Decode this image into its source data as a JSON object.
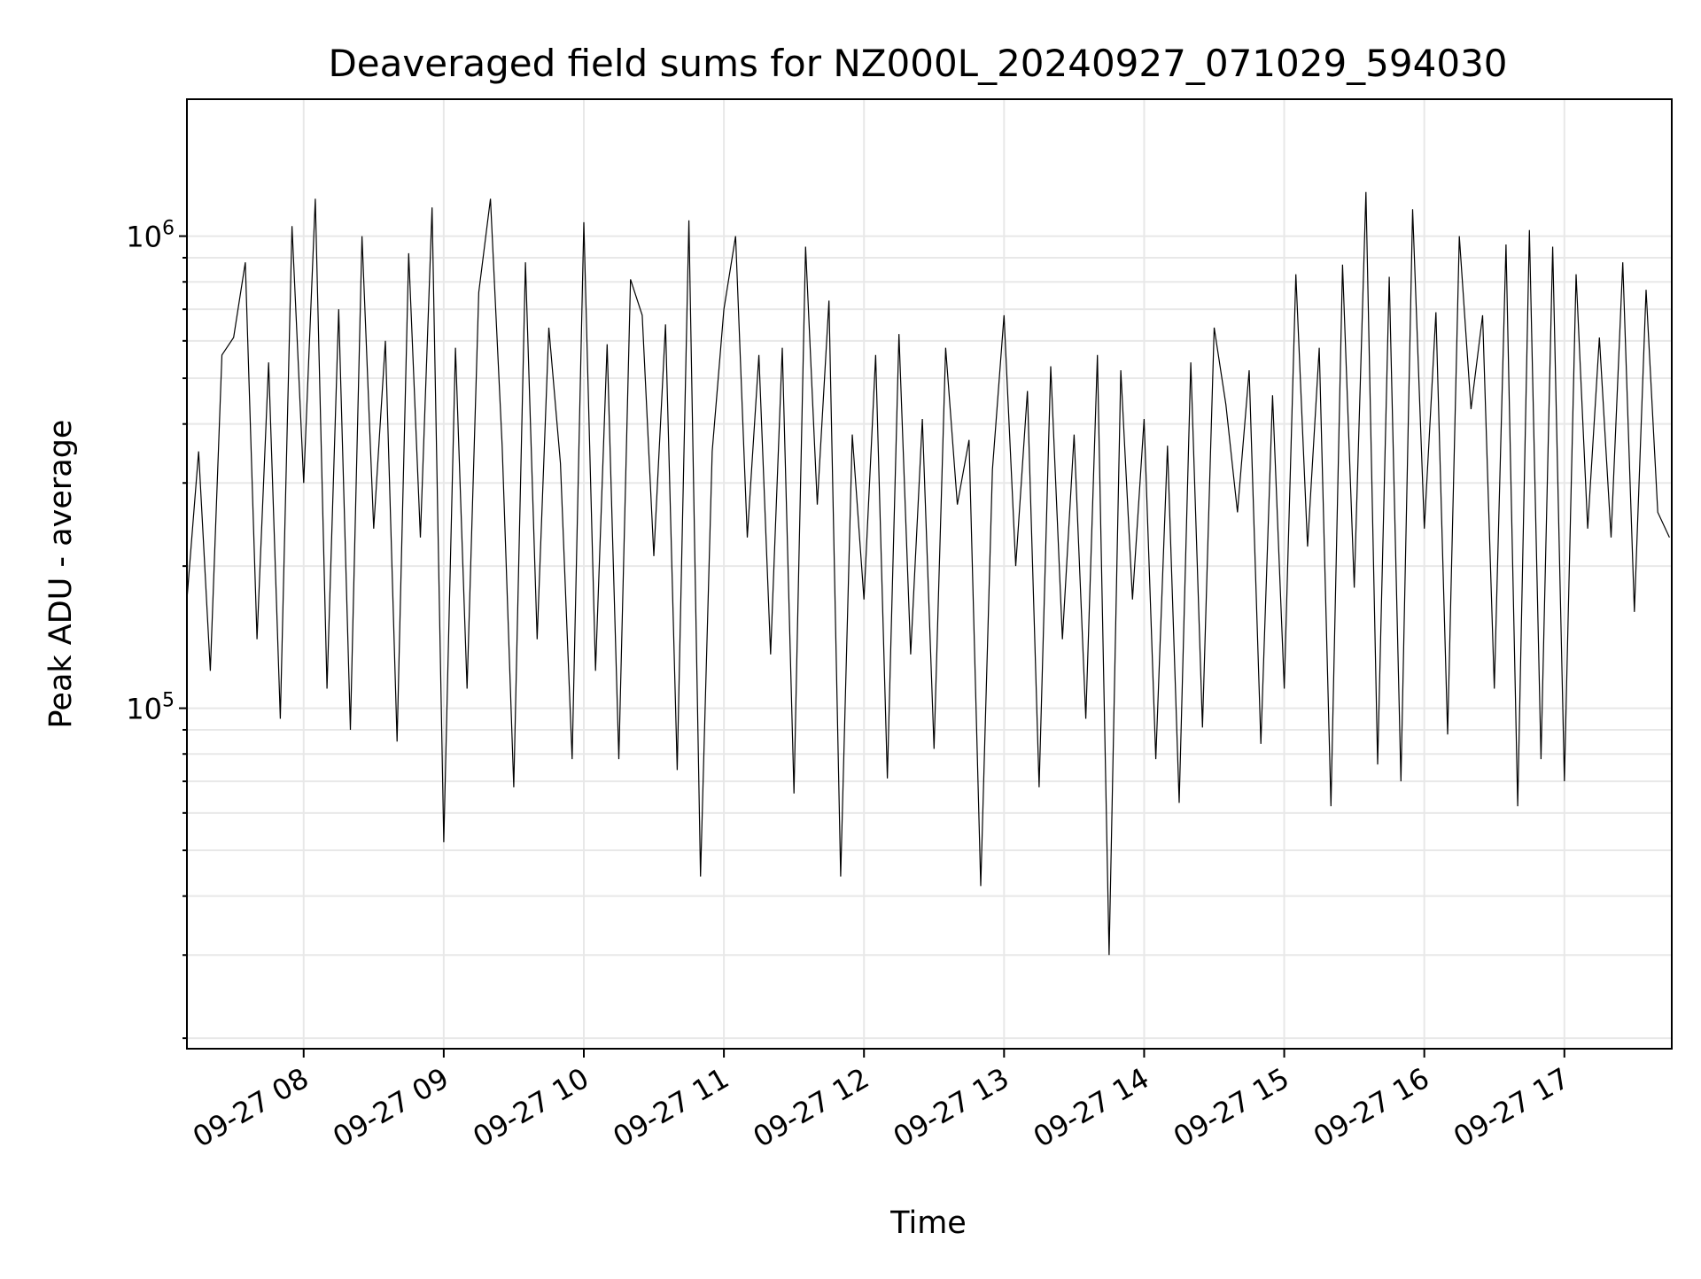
{
  "chart_data": {
    "type": "line",
    "title": "Deaveraged field sums for NZ000L_20240927_071029_594030",
    "xlabel": "Time",
    "ylabel": "Peak ADU - average",
    "yscale": "log",
    "ylim": [
      19000,
      1950000
    ],
    "xlim": [
      "2024-09-27 07:10",
      "2024-09-27 17:46"
    ],
    "grid": true,
    "line_color": "#000000",
    "grid_color": "#e8e8e8",
    "x_ticks": [
      {
        "value": "2024-09-27 08:00",
        "label": "09-27 08"
      },
      {
        "value": "2024-09-27 09:00",
        "label": "09-27 09"
      },
      {
        "value": "2024-09-27 10:00",
        "label": "09-27 10"
      },
      {
        "value": "2024-09-27 11:00",
        "label": "09-27 11"
      },
      {
        "value": "2024-09-27 12:00",
        "label": "09-27 12"
      },
      {
        "value": "2024-09-27 13:00",
        "label": "09-27 13"
      },
      {
        "value": "2024-09-27 14:00",
        "label": "09-27 14"
      },
      {
        "value": "2024-09-27 15:00",
        "label": "09-27 15"
      },
      {
        "value": "2024-09-27 16:00",
        "label": "09-27 16"
      },
      {
        "value": "2024-09-27 17:00",
        "label": "09-27 17"
      }
    ],
    "y_major_ticks": [
      {
        "value": 100000,
        "base": "10",
        "exp": "5"
      },
      {
        "value": 1000000,
        "base": "10",
        "exp": "6"
      }
    ],
    "series": [
      {
        "x": [
          "2024-09-27 07:10",
          "2024-09-27 07:15",
          "2024-09-27 07:20",
          "2024-09-27 07:25",
          "2024-09-27 07:30",
          "2024-09-27 07:35",
          "2024-09-27 07:40",
          "2024-09-27 07:45",
          "2024-09-27 07:50",
          "2024-09-27 07:55",
          "2024-09-27 08:00",
          "2024-09-27 08:05",
          "2024-09-27 08:10",
          "2024-09-27 08:15",
          "2024-09-27 08:20",
          "2024-09-27 08:25",
          "2024-09-27 08:30",
          "2024-09-27 08:35",
          "2024-09-27 08:40",
          "2024-09-27 08:45",
          "2024-09-27 08:50",
          "2024-09-27 08:55",
          "2024-09-27 09:00",
          "2024-09-27 09:05",
          "2024-09-27 09:10",
          "2024-09-27 09:15",
          "2024-09-27 09:20",
          "2024-09-27 09:25",
          "2024-09-27 09:30",
          "2024-09-27 09:35",
          "2024-09-27 09:40",
          "2024-09-27 09:45",
          "2024-09-27 09:50",
          "2024-09-27 09:55",
          "2024-09-27 10:00",
          "2024-09-27 10:05",
          "2024-09-27 10:10",
          "2024-09-27 10:15",
          "2024-09-27 10:20",
          "2024-09-27 10:25",
          "2024-09-27 10:30",
          "2024-09-27 10:35",
          "2024-09-27 10:40",
          "2024-09-27 10:45",
          "2024-09-27 10:50",
          "2024-09-27 10:55",
          "2024-09-27 11:00",
          "2024-09-27 11:05",
          "2024-09-27 11:10",
          "2024-09-27 11:15",
          "2024-09-27 11:20",
          "2024-09-27 11:25",
          "2024-09-27 11:30",
          "2024-09-27 11:35",
          "2024-09-27 11:40",
          "2024-09-27 11:45",
          "2024-09-27 11:50",
          "2024-09-27 11:55",
          "2024-09-27 12:00",
          "2024-09-27 12:05",
          "2024-09-27 12:10",
          "2024-09-27 12:15",
          "2024-09-27 12:20",
          "2024-09-27 12:25",
          "2024-09-27 12:30",
          "2024-09-27 12:35",
          "2024-09-27 12:40",
          "2024-09-27 12:45",
          "2024-09-27 12:50",
          "2024-09-27 12:55",
          "2024-09-27 13:00",
          "2024-09-27 13:05",
          "2024-09-27 13:10",
          "2024-09-27 13:15",
          "2024-09-27 13:20",
          "2024-09-27 13:25",
          "2024-09-27 13:30",
          "2024-09-27 13:35",
          "2024-09-27 13:40",
          "2024-09-27 13:45",
          "2024-09-27 13:50",
          "2024-09-27 13:55",
          "2024-09-27 14:00",
          "2024-09-27 14:05",
          "2024-09-27 14:10",
          "2024-09-27 14:15",
          "2024-09-27 14:20",
          "2024-09-27 14:25",
          "2024-09-27 14:30",
          "2024-09-27 14:35",
          "2024-09-27 14:40",
          "2024-09-27 14:45",
          "2024-09-27 14:50",
          "2024-09-27 14:55",
          "2024-09-27 15:00",
          "2024-09-27 15:05",
          "2024-09-27 15:10",
          "2024-09-27 15:15",
          "2024-09-27 15:20",
          "2024-09-27 15:25",
          "2024-09-27 15:30",
          "2024-09-27 15:35",
          "2024-09-27 15:40",
          "2024-09-27 15:45",
          "2024-09-27 15:50",
          "2024-09-27 15:55",
          "2024-09-27 16:00",
          "2024-09-27 16:05",
          "2024-09-27 16:10",
          "2024-09-27 16:15",
          "2024-09-27 16:20",
          "2024-09-27 16:25",
          "2024-09-27 16:30",
          "2024-09-27 16:35",
          "2024-09-27 16:40",
          "2024-09-27 16:45",
          "2024-09-27 16:50",
          "2024-09-27 16:55",
          "2024-09-27 17:00",
          "2024-09-27 17:05",
          "2024-09-27 17:10",
          "2024-09-27 17:15",
          "2024-09-27 17:20",
          "2024-09-27 17:25",
          "2024-09-27 17:30",
          "2024-09-27 17:35",
          "2024-09-27 17:40",
          "2024-09-27 17:45"
        ],
        "values": [
          170000,
          350000,
          120000,
          560000,
          610000,
          880000,
          140000,
          540000,
          95000,
          1050000,
          300000,
          1200000,
          110000,
          700000,
          90000,
          1000000,
          240000,
          600000,
          85000,
          920000,
          230000,
          1150000,
          52000,
          580000,
          110000,
          760000,
          1200000,
          360000,
          68000,
          880000,
          140000,
          640000,
          330000,
          78000,
          1070000,
          120000,
          590000,
          78000,
          810000,
          680000,
          210000,
          650000,
          74000,
          1080000,
          44000,
          350000,
          700000,
          1000000,
          230000,
          560000,
          130000,
          580000,
          66000,
          950000,
          270000,
          730000,
          44000,
          380000,
          170000,
          560000,
          71000,
          620000,
          130000,
          410000,
          82000,
          580000,
          270000,
          370000,
          42000,
          320000,
          680000,
          200000,
          470000,
          68000,
          530000,
          140000,
          380000,
          95000,
          560000,
          30000,
          520000,
          170000,
          410000,
          78000,
          360000,
          63000,
          540000,
          91000,
          640000,
          440000,
          260000,
          520000,
          84000,
          460000,
          110000,
          830000,
          220000,
          580000,
          62000,
          870000,
          180000,
          1240000,
          76000,
          820000,
          70000,
          1140000,
          240000,
          690000,
          88000,
          1000000,
          430000,
          680000,
          110000,
          960000,
          62000,
          1030000,
          78000,
          950000,
          70000,
          830000,
          240000,
          610000,
          230000,
          880000,
          160000,
          770000,
          260000,
          230000
        ]
      }
    ]
  }
}
